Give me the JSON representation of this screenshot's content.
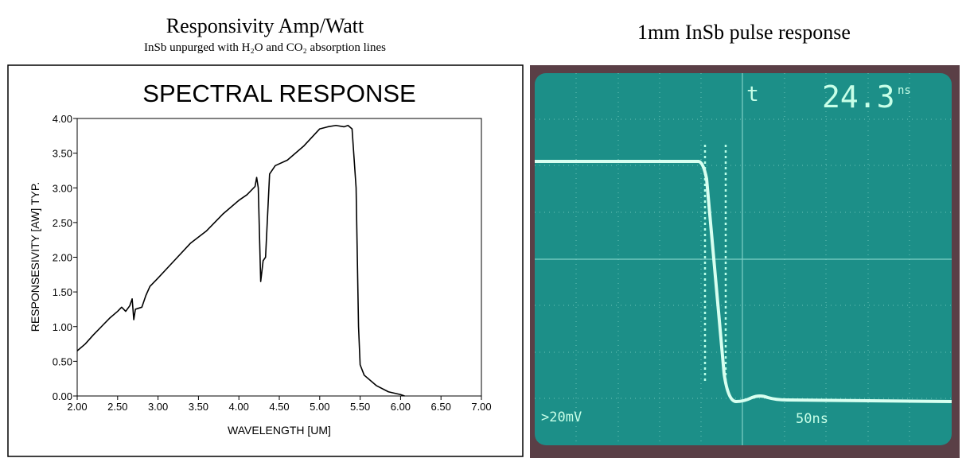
{
  "left_panel": {
    "title": "Responsivity  Amp/Watt",
    "subtitle": "InSb unpurged with H₂O and CO₂ absorption lines"
  },
  "chart_data": {
    "type": "line",
    "title": "SPECTRAL RESPONSE",
    "x_label": "WAVELENGTH [UM]",
    "y_label": "RESPONSESIVITY [AW] TYP.",
    "x": [
      2.0,
      2.1,
      2.2,
      2.3,
      2.4,
      2.5,
      2.55,
      2.6,
      2.65,
      2.68,
      2.7,
      2.72,
      2.8,
      2.85,
      2.9,
      3.0,
      3.2,
      3.4,
      3.6,
      3.8,
      4.0,
      4.1,
      4.2,
      4.22,
      4.24,
      4.27,
      4.3,
      4.33,
      4.38,
      4.45,
      4.6,
      4.8,
      5.0,
      5.1,
      5.2,
      5.3,
      5.35,
      5.4,
      5.45,
      5.48,
      5.5,
      5.55,
      5.7,
      5.85,
      6.0,
      6.05
    ],
    "values": [
      0.65,
      0.75,
      0.88,
      1.0,
      1.12,
      1.22,
      1.28,
      1.22,
      1.3,
      1.4,
      1.1,
      1.25,
      1.28,
      1.45,
      1.58,
      1.7,
      1.95,
      2.2,
      2.38,
      2.62,
      2.82,
      2.9,
      3.02,
      3.15,
      3.0,
      1.65,
      1.95,
      2.0,
      3.2,
      3.32,
      3.4,
      3.6,
      3.85,
      3.88,
      3.9,
      3.88,
      3.9,
      3.85,
      3.0,
      1.0,
      0.45,
      0.3,
      0.15,
      0.06,
      0.02,
      0.0
    ],
    "color": "#000000",
    "xlim": [
      2.0,
      7.0
    ],
    "ylim": [
      0.0,
      4.0
    ],
    "xticks": [
      {
        "value": 2.0,
        "label": "2.00"
      },
      {
        "value": 2.5,
        "label": "2.50"
      },
      {
        "value": 3.0,
        "label": "3.00"
      },
      {
        "value": 3.5,
        "label": "3.50"
      },
      {
        "value": 4.0,
        "label": "4.00"
      },
      {
        "value": 4.5,
        "label": "4.50"
      },
      {
        "value": 5.0,
        "label": "5.00"
      },
      {
        "value": 5.5,
        "label": "5.50"
      },
      {
        "value": 6.0,
        "label": "6.00"
      },
      {
        "value": 6.5,
        "label": "6.50"
      },
      {
        "value": 7.0,
        "label": "7.00"
      }
    ],
    "yticks": [
      {
        "value": 0.0,
        "label": "0.00"
      },
      {
        "value": 0.5,
        "label": "0.50"
      },
      {
        "value": 1.0,
        "label": "1.00"
      },
      {
        "value": 1.5,
        "label": "1.50"
      },
      {
        "value": 2.0,
        "label": "2.00"
      },
      {
        "value": 2.5,
        "label": "2.50"
      },
      {
        "value": 3.0,
        "label": "3.00"
      },
      {
        "value": 3.5,
        "label": "3.50"
      },
      {
        "value": 4.0,
        "label": "4.00"
      }
    ],
    "grid": false
  },
  "right_panel": {
    "title": "1mm InSb pulse response",
    "scope": {
      "cursor_label": "t",
      "cursor_value": "24.3",
      "cursor_unit": "ns",
      "volts_per_div": ">20mV",
      "time_per_div": "50ns"
    }
  }
}
